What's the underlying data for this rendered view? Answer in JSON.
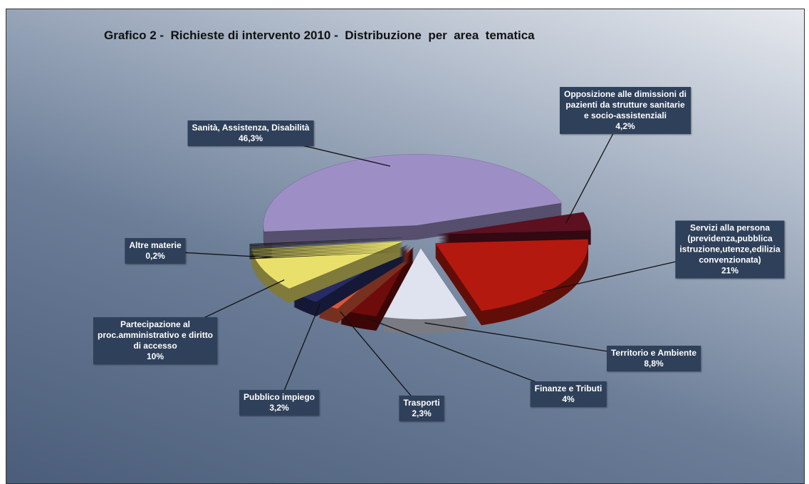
{
  "chart_data": {
    "type": "pie",
    "title": "Grafico 2 -  Richieste di intervento 2010 -  Distribuzione  per  area  tematica",
    "categories": [
      "Sanità, Assistenza, Disabilità",
      "Opposizione alle dimissioni di\npazienti da strutture sanitarie\ne socio-assistenziali",
      "Servizi alla persona\n(previdenza,pubblica\nistruzione,utenze,edilizia\nconvenzionata)",
      "Territorio e Ambiente",
      "Finanze e Tributi",
      "Trasporti",
      "Pubblico impiego",
      "Partecipazione al\nproc.amministrativo e diritto\ndi accesso",
      "Altre materie"
    ],
    "values": [
      46.3,
      4.2,
      21,
      8.8,
      4,
      2.3,
      3.2,
      10,
      0.2
    ],
    "value_labels": [
      "46,3%",
      "4,2%",
      "21%",
      "8,8%",
      "4%",
      "2,3%",
      "3,2%",
      "10%",
      "0,2%"
    ],
    "colors": [
      "#9d8fc6",
      "#5c1020",
      "#b3190f",
      "#dfe2ef",
      "#6e0b0b",
      "#d9573b",
      "#262b63",
      "#e9e06c",
      "#1c1c1c"
    ]
  }
}
